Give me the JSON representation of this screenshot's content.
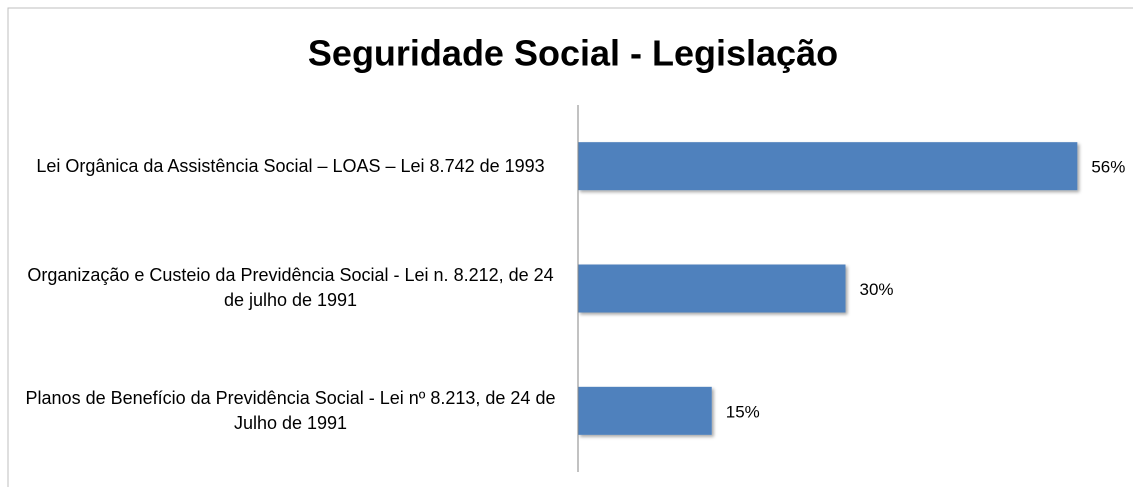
{
  "chart_data": {
    "type": "bar",
    "orientation": "horizontal",
    "title": "Seguridade Social - Legislação",
    "categories": [
      "Lei Orgânica da Assistência Social – LOAS – Lei 8.742 de 1993",
      "Organização e Custeio da Previdência Social - Lei n. 8.212, de 24 de julho de 1991",
      "Planos de Benefício da Previdência Social - Lei nº 8.213, de 24 de Julho de 1991"
    ],
    "values": [
      56,
      30,
      15
    ],
    "value_labels": [
      "56%",
      "30%",
      "15%"
    ],
    "color": "#4f81bd",
    "xlim": [
      0,
      60
    ]
  }
}
